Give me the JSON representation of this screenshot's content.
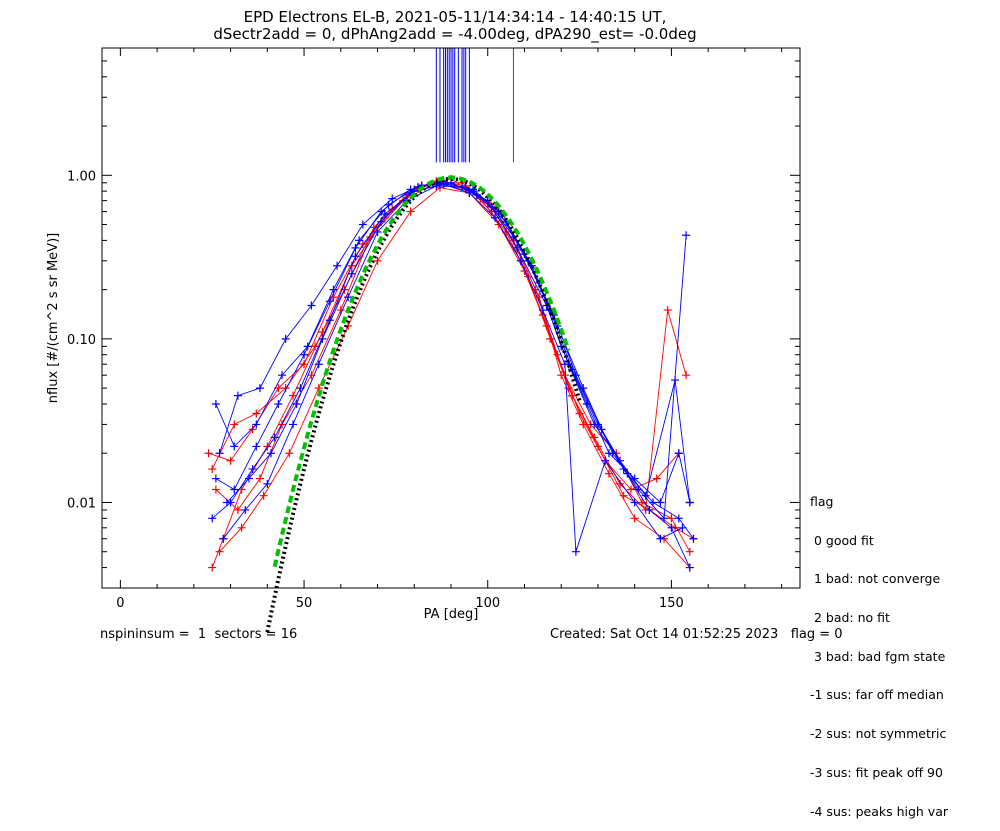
{
  "chart_data": {
    "type": "scatter",
    "title": "EPD Electrons EL-B, 2021-05-11/14:34:14 - 14:40:15 UT,",
    "subtitle": "dSectr2add = 0, dPhAng2add = -4.00deg, dPA290_est=  -0.0deg",
    "xlabel": "PA [deg]",
    "ylabel": "nflux [#/(cm^2 s sr MeV)]",
    "xlim": [
      -5,
      185
    ],
    "ylim": [
      0.003,
      6.0
    ],
    "yscale": "log",
    "x_ticks": [
      0,
      50,
      100,
      150
    ],
    "x_tick_labels": [
      "0",
      "50",
      "100",
      "150"
    ],
    "y_ticks": [
      0.01,
      0.1,
      1.0
    ],
    "y_tick_labels": [
      "0.01",
      "0.10",
      "1.00"
    ],
    "series": [
      {
        "color": "#ff0000",
        "points": [
          [
            25,
            0.004
          ],
          [
            28,
            0.006
          ],
          [
            33,
            0.012
          ],
          [
            40,
            0.022
          ],
          [
            47,
            0.045
          ],
          [
            55,
            0.11
          ],
          [
            63,
            0.28
          ],
          [
            72,
            0.55
          ],
          [
            80,
            0.82
          ],
          [
            86,
            0.9
          ],
          [
            95,
            0.8
          ],
          [
            102,
            0.62
          ],
          [
            108,
            0.35
          ],
          [
            114,
            0.18
          ],
          [
            120,
            0.06
          ],
          [
            126,
            0.03
          ],
          [
            133,
            0.015
          ],
          [
            140,
            0.008
          ],
          [
            148,
            0.006
          ],
          [
            155,
            0.004
          ]
        ]
      },
      {
        "color": "#ff0000",
        "points": [
          [
            24,
            0.02
          ],
          [
            30,
            0.018
          ],
          [
            36,
            0.028
          ],
          [
            43,
            0.05
          ],
          [
            50,
            0.07
          ],
          [
            58,
            0.18
          ],
          [
            66,
            0.38
          ],
          [
            74,
            0.62
          ],
          [
            82,
            0.86
          ],
          [
            90,
            0.95
          ],
          [
            98,
            0.72
          ],
          [
            105,
            0.45
          ],
          [
            111,
            0.24
          ],
          [
            117,
            0.1
          ],
          [
            123,
            0.045
          ],
          [
            130,
            0.022
          ],
          [
            137,
            0.011
          ],
          [
            144,
            0.009
          ],
          [
            151,
            0.007
          ],
          [
            156,
            0.006
          ]
        ]
      },
      {
        "color": "#ff0000",
        "points": [
          [
            26,
            0.012
          ],
          [
            32,
            0.009
          ],
          [
            38,
            0.014
          ],
          [
            44,
            0.03
          ],
          [
            52,
            0.06
          ],
          [
            60,
            0.15
          ],
          [
            68,
            0.42
          ],
          [
            77,
            0.7
          ],
          [
            85,
            0.88
          ],
          [
            93,
            0.9
          ],
          [
            100,
            0.68
          ],
          [
            107,
            0.4
          ],
          [
            113,
            0.2
          ],
          [
            119,
            0.08
          ],
          [
            125,
            0.035
          ],
          [
            132,
            0.018
          ],
          [
            139,
            0.012
          ],
          [
            146,
            0.014
          ],
          [
            152,
            0.02
          ]
        ]
      },
      {
        "color": "#ff0000",
        "points": [
          [
            25,
            0.016
          ],
          [
            31,
            0.03
          ],
          [
            37,
            0.035
          ],
          [
            45,
            0.05
          ],
          [
            53,
            0.09
          ],
          [
            61,
            0.2
          ],
          [
            69,
            0.48
          ],
          [
            78,
            0.76
          ],
          [
            86,
            0.92
          ],
          [
            94,
            0.86
          ],
          [
            101,
            0.6
          ],
          [
            109,
            0.3
          ],
          [
            115,
            0.14
          ],
          [
            121,
            0.06
          ],
          [
            128,
            0.03
          ],
          [
            135,
            0.02
          ],
          [
            142,
            0.01
          ],
          [
            150,
            0.008
          ],
          [
            155,
            0.005
          ]
        ]
      },
      {
        "color": "#ff0000",
        "points": [
          [
            27,
            0.005
          ],
          [
            33,
            0.007
          ],
          [
            39,
            0.011
          ],
          [
            46,
            0.02
          ],
          [
            54,
            0.05
          ],
          [
            62,
            0.12
          ],
          [
            70,
            0.3
          ],
          [
            79,
            0.6
          ],
          [
            87,
            0.84
          ],
          [
            95,
            0.78
          ],
          [
            103,
            0.5
          ],
          [
            110,
            0.26
          ],
          [
            116,
            0.12
          ],
          [
            122,
            0.05
          ],
          [
            129,
            0.025
          ],
          [
            136,
            0.013
          ],
          [
            143,
            0.009
          ],
          [
            149,
            0.15
          ],
          [
            154,
            0.06
          ]
        ]
      },
      {
        "color": "#0000ff",
        "points": [
          [
            26,
            0.04
          ],
          [
            31,
            0.022
          ],
          [
            37,
            0.03
          ],
          [
            44,
            0.06
          ],
          [
            51,
            0.09
          ],
          [
            58,
            0.2
          ],
          [
            65,
            0.4
          ],
          [
            73,
            0.66
          ],
          [
            81,
            0.85
          ],
          [
            88,
            0.92
          ],
          [
            96,
            0.8
          ],
          [
            104,
            0.58
          ],
          [
            111,
            0.3
          ],
          [
            118,
            0.14
          ],
          [
            124,
            0.06
          ],
          [
            131,
            0.028
          ],
          [
            138,
            0.015
          ],
          [
            145,
            0.01
          ],
          [
            152,
            0.008
          ],
          [
            156,
            0.006
          ]
        ]
      },
      {
        "color": "#0000ff",
        "points": [
          [
            25,
            0.008
          ],
          [
            30,
            0.01
          ],
          [
            36,
            0.016
          ],
          [
            42,
            0.025
          ],
          [
            49,
            0.05
          ],
          [
            57,
            0.13
          ],
          [
            64,
            0.32
          ],
          [
            72,
            0.58
          ],
          [
            80,
            0.8
          ],
          [
            88,
            0.88
          ],
          [
            95,
            0.78
          ],
          [
            102,
            0.55
          ],
          [
            109,
            0.3
          ],
          [
            115,
            0.15
          ],
          [
            121,
            0.07
          ],
          [
            124,
            0.005
          ],
          [
            132,
            0.018
          ],
          [
            140,
            0.01
          ],
          [
            147,
            0.006
          ],
          [
            153,
            0.007
          ]
        ]
      },
      {
        "color": "#0000ff",
        "points": [
          [
            27,
            0.02
          ],
          [
            32,
            0.045
          ],
          [
            38,
            0.05
          ],
          [
            45,
            0.1
          ],
          [
            52,
            0.16
          ],
          [
            59,
            0.28
          ],
          [
            66,
            0.5
          ],
          [
            74,
            0.72
          ],
          [
            82,
            0.87
          ],
          [
            90,
            0.9
          ],
          [
            97,
            0.76
          ],
          [
            105,
            0.52
          ],
          [
            112,
            0.28
          ],
          [
            119,
            0.12
          ],
          [
            126,
            0.05
          ],
          [
            134,
            0.02
          ],
          [
            141,
            0.012
          ],
          [
            148,
            0.008
          ],
          [
            154,
            0.43
          ]
        ]
      },
      {
        "color": "#0000ff",
        "points": [
          [
            28,
            0.006
          ],
          [
            34,
            0.009
          ],
          [
            40,
            0.013
          ],
          [
            47,
            0.03
          ],
          [
            54,
            0.07
          ],
          [
            62,
            0.18
          ],
          [
            70,
            0.45
          ],
          [
            78,
            0.7
          ],
          [
            86,
            0.86
          ],
          [
            93,
            0.85
          ],
          [
            100,
            0.7
          ],
          [
            107,
            0.42
          ],
          [
            114,
            0.22
          ],
          [
            120,
            0.09
          ],
          [
            127,
            0.04
          ],
          [
            133,
            0.02
          ],
          [
            140,
            0.014
          ],
          [
            147,
            0.01
          ],
          [
            152,
            0.02
          ],
          [
            155,
            0.01
          ]
        ]
      },
      {
        "color": "#0000ff",
        "points": [
          [
            26,
            0.014
          ],
          [
            31,
            0.012
          ],
          [
            37,
            0.022
          ],
          [
            43,
            0.04
          ],
          [
            50,
            0.08
          ],
          [
            57,
            0.17
          ],
          [
            64,
            0.36
          ],
          [
            71,
            0.6
          ],
          [
            79,
            0.82
          ],
          [
            87,
            0.9
          ],
          [
            94,
            0.84
          ],
          [
            101,
            0.64
          ],
          [
            108,
            0.36
          ],
          [
            116,
            0.16
          ],
          [
            122,
            0.07
          ],
          [
            129,
            0.03
          ],
          [
            136,
            0.018
          ],
          [
            143,
            0.011
          ],
          [
            151,
            0.056
          ],
          [
            155,
            0.01
          ]
        ]
      },
      {
        "color": "#0000ff",
        "points": [
          [
            29,
            0.01
          ],
          [
            35,
            0.014
          ],
          [
            41,
            0.02
          ],
          [
            48,
            0.04
          ],
          [
            55,
            0.1
          ],
          [
            63,
            0.25
          ],
          [
            71,
            0.52
          ],
          [
            79,
            0.78
          ],
          [
            87,
            0.88
          ],
          [
            96,
            0.82
          ],
          [
            103,
            0.6
          ],
          [
            110,
            0.33
          ],
          [
            117,
            0.15
          ],
          [
            123,
            0.065
          ],
          [
            130,
            0.03
          ],
          [
            137,
            0.016
          ],
          [
            144,
            0.009
          ],
          [
            150,
            0.007
          ],
          [
            155,
            0.004
          ]
        ]
      }
    ],
    "fits": [
      {
        "color": "#000000",
        "peak": 0.95,
        "center": 90,
        "sigma": 14,
        "x_range": [
          40,
          125
        ],
        "style": "dotted"
      },
      {
        "color": "#00c000",
        "peak": 0.97,
        "center": 90,
        "sigma": 14.5,
        "x_range": [
          42,
          122
        ],
        "style": "dashed"
      }
    ],
    "upper_marks": {
      "blue_x": [
        86,
        87,
        88,
        88.5,
        89,
        89.5,
        90,
        90.5,
        91,
        92,
        93,
        93.5,
        94,
        95
      ],
      "red_x": [
        107
      ],
      "y_bottom": 1.2
    }
  },
  "legend": {
    "title": "flag",
    "items": [
      " 0 good fit",
      " 1 bad: not converge",
      " 2 bad: no fit",
      " 3 bad: bad fgm state",
      "-1 sus: far off median",
      "-2 sus: not symmetric",
      "-3 sus: fit peak off 90",
      "-4 sus: peaks high var"
    ]
  },
  "footer": {
    "left": "nspininsum =  1  sectors = 16",
    "right": "Created: Sat Oct 14 01:52:25 2023   flag = 0"
  }
}
